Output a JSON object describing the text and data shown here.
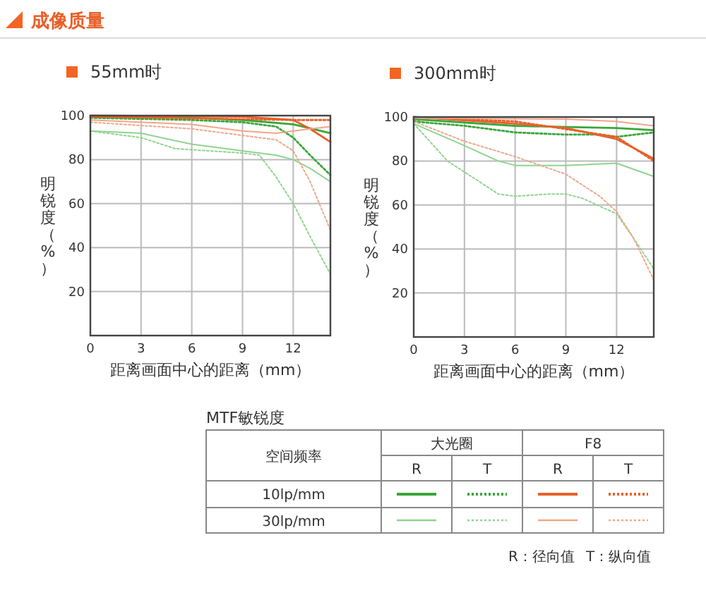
{
  "chart_data": [
    {
      "type": "line",
      "title": "55mm时",
      "xlabel": "距离画面中心的距离（mm）",
      "ylabel": "明锐度（%）",
      "xlim": [
        0,
        14.2
      ],
      "xticks": [
        0,
        3,
        6,
        9,
        12
      ],
      "ylim": [
        0,
        100
      ],
      "yticks": [
        20,
        40,
        60,
        80,
        100
      ],
      "grid": true,
      "series": [
        {
          "color": "#3aa63a",
          "line_style": "solid",
          "x": [
            0,
            6,
            9,
            12,
            14.2
          ],
          "values": [
            99.5,
            99,
            98,
            96,
            92
          ]
        },
        {
          "color": "#3aa63a",
          "line_style": "dotted",
          "x": [
            0,
            6,
            9,
            11,
            12,
            13,
            14.2
          ],
          "values": [
            99,
            98,
            97,
            95,
            90,
            82,
            73
          ]
        },
        {
          "color": "#e8602a",
          "line_style": "solid",
          "x": [
            0,
            9,
            12,
            13,
            14.2
          ],
          "values": [
            100,
            99.5,
            98,
            94,
            88
          ]
        },
        {
          "color": "#e8602a",
          "line_style": "dotted",
          "x": [
            0,
            12,
            14.2
          ],
          "values": [
            99.5,
            98,
            98
          ]
        },
        {
          "color": "#8fd48f",
          "line_style": "solid",
          "x": [
            0,
            3,
            6,
            9,
            11,
            12,
            13,
            14.2
          ],
          "values": [
            93,
            92,
            87,
            84,
            82,
            80,
            76,
            70
          ]
        },
        {
          "color": "#8fd48f",
          "line_style": "dotted",
          "x": [
            0,
            3,
            5,
            7,
            9,
            10,
            11,
            12,
            13,
            14.2
          ],
          "values": [
            93,
            90,
            85,
            84,
            83,
            82,
            72,
            60,
            45,
            28
          ]
        },
        {
          "color": "#f2a68a",
          "line_style": "solid",
          "x": [
            0,
            6,
            9,
            11,
            12,
            14.2
          ],
          "values": [
            98,
            96,
            93,
            92,
            93,
            95
          ]
        },
        {
          "color": "#f2a68a",
          "line_style": "dotted",
          "x": [
            0,
            6,
            9,
            11,
            12,
            13,
            14.2
          ],
          "values": [
            97,
            94,
            91,
            89,
            84,
            70,
            48
          ]
        }
      ]
    },
    {
      "type": "line",
      "title": "300mm时",
      "xlabel": "距离画面中心的距离（mm）",
      "ylabel": "明锐度（%）",
      "xlim": [
        0,
        14.2
      ],
      "xticks": [
        0,
        3,
        6,
        9,
        12
      ],
      "ylim": [
        0,
        100
      ],
      "yticks": [
        20,
        40,
        60,
        80,
        100
      ],
      "grid": true,
      "series": [
        {
          "color": "#3aa63a",
          "line_style": "solid",
          "x": [
            0,
            6,
            9,
            12,
            14.2
          ],
          "values": [
            99,
            96,
            95.5,
            95,
            94
          ]
        },
        {
          "color": "#3aa63a",
          "line_style": "dotted",
          "x": [
            0,
            3,
            6,
            9,
            11,
            12,
            14.2
          ],
          "values": [
            98,
            96,
            93,
            92,
            92,
            91,
            93
          ]
        },
        {
          "color": "#e8602a",
          "line_style": "solid",
          "x": [
            0,
            6,
            9,
            12,
            13,
            14.2
          ],
          "values": [
            100,
            97,
            95,
            90,
            86,
            81
          ]
        },
        {
          "color": "#e8602a",
          "line_style": "dotted",
          "x": [
            0,
            6,
            12,
            14.2
          ],
          "values": [
            100,
            98,
            91,
            80
          ]
        },
        {
          "color": "#8fd48f",
          "line_style": "solid",
          "x": [
            0,
            3,
            5,
            6,
            9,
            12,
            14.2
          ],
          "values": [
            97,
            87,
            80,
            78,
            78,
            79,
            73
          ]
        },
        {
          "color": "#8fd48f",
          "line_style": "dotted",
          "x": [
            0,
            2,
            3,
            5,
            6,
            8,
            9,
            10,
            12,
            13,
            14.2
          ],
          "values": [
            97,
            80,
            75,
            65,
            64,
            65,
            65,
            63,
            56,
            45,
            31
          ]
        },
        {
          "color": "#f2a68a",
          "line_style": "solid",
          "x": [
            0,
            9,
            12,
            14.2
          ],
          "values": [
            99.5,
            99,
            98,
            96
          ]
        },
        {
          "color": "#f2a68a",
          "line_style": "dotted",
          "x": [
            0,
            3,
            6,
            9,
            11,
            12,
            13,
            14.2
          ],
          "values": [
            98,
            89,
            82,
            74,
            64,
            57,
            45,
            26
          ]
        }
      ]
    },
    {
      "type": "other",
      "title": "MTF敏锐度",
      "annotations": [
        "成像质量",
        "空间频率",
        "大光圈",
        "F8",
        "R",
        "T",
        "R",
        "T",
        "10lp/mm",
        "30lp/mm",
        "R：径向值",
        "T：纵向值"
      ]
    }
  ]
}
